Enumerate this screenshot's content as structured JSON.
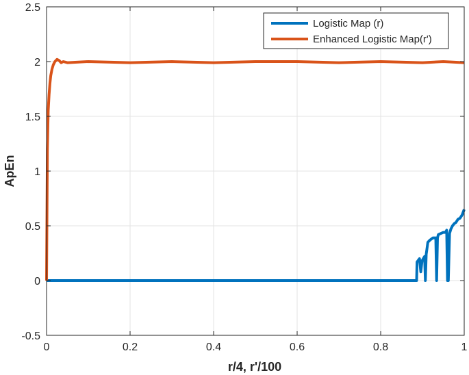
{
  "chart_data": {
    "type": "line",
    "title": "",
    "xlabel": "r/4, r'/100",
    "ylabel": "ApEn",
    "xlim": [
      0,
      1
    ],
    "ylim": [
      -0.5,
      2.5
    ],
    "grid": true,
    "legend_position": "top-right",
    "x_ticks": [
      0,
      0.2,
      0.4,
      0.6,
      0.8,
      1
    ],
    "x_tick_labels": [
      "0",
      "0.2",
      "0.4",
      "0.6",
      "0.8",
      "1"
    ],
    "y_ticks": [
      -0.5,
      0,
      0.5,
      1,
      1.5,
      2,
      2.5
    ],
    "y_tick_labels": [
      "-0.5",
      "0",
      "0.5",
      "1",
      "1.5",
      "2",
      "2.5"
    ],
    "series": [
      {
        "name": "Logistic Map (r)",
        "color": "#0072BD",
        "x": [
          0,
          0.2,
          0.4,
          0.6,
          0.8,
          0.886,
          0.887,
          0.893,
          0.896,
          0.899,
          0.902,
          0.905,
          0.907,
          0.909,
          0.913,
          0.918,
          0.925,
          0.932,
          0.934,
          0.936,
          0.938,
          0.944,
          0.95,
          0.955,
          0.958,
          0.96,
          0.962,
          0.965,
          0.968,
          0.972,
          0.976,
          0.98,
          0.985,
          0.99,
          0.995,
          1.0
        ],
        "values": [
          0,
          0,
          0,
          0,
          0,
          0,
          0.17,
          0.2,
          0.08,
          0.18,
          0.2,
          0.22,
          0,
          0.24,
          0.35,
          0.37,
          0.39,
          0.39,
          0,
          0.39,
          0.42,
          0.43,
          0.44,
          0.44,
          0.46,
          0,
          0,
          0.43,
          0.47,
          0.5,
          0.52,
          0.53,
          0.56,
          0.57,
          0.6,
          0.65
        ]
      },
      {
        "name": "Enhanced Logistic Map(r')",
        "color": "#D95319",
        "x": [
          0,
          0.002,
          0.004,
          0.006,
          0.008,
          0.01,
          0.013,
          0.016,
          0.02,
          0.025,
          0.03,
          0.035,
          0.04,
          0.05,
          0.1,
          0.2,
          0.3,
          0.4,
          0.5,
          0.6,
          0.7,
          0.8,
          0.9,
          0.95,
          1.0
        ],
        "values": [
          0,
          1.2,
          1.55,
          1.7,
          1.8,
          1.87,
          1.93,
          1.97,
          2.0,
          2.02,
          2.01,
          1.99,
          2.0,
          1.99,
          2.0,
          1.99,
          2.0,
          1.99,
          2.0,
          2.0,
          1.99,
          2.0,
          1.99,
          2.0,
          1.99
        ]
      }
    ]
  }
}
